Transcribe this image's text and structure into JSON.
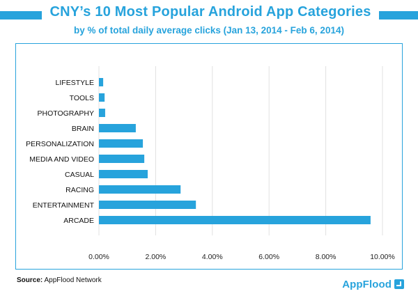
{
  "header": {
    "title": "CNY’s 10 Most Popular Android App Categories",
    "subtitle": "by % of total daily average clicks (Jan 13, 2014 - Feb 6, 2014)"
  },
  "footer": {
    "source_label": "Source:",
    "source_text": " AppFlood Network",
    "brand": "AppFlood"
  },
  "colors": {
    "accent": "#27a3dc",
    "bar": "#27a3dc",
    "grid": "#e0e0e0"
  },
  "chart_data": {
    "type": "bar",
    "orientation": "horizontal",
    "title": "CNY’s 10 Most Popular Android App Categories",
    "subtitle": "by % of total daily average clicks (Jan 13, 2014 - Feb 6, 2014)",
    "categories": [
      "LIFESTYLE",
      "TOOLS",
      "PHOTOGRAPHY",
      "BRAIN",
      "PERSONALIZATION",
      "MEDIA AND VIDEO",
      "CASUAL",
      "RACING",
      "ENTERTAINMENT",
      "ARCADE"
    ],
    "values": [
      0.15,
      0.2,
      0.22,
      1.3,
      1.55,
      1.6,
      1.72,
      2.88,
      3.42,
      9.58
    ],
    "unit": "%",
    "xlim": [
      0,
      10
    ],
    "xticks": [
      0,
      2,
      4,
      6,
      8,
      10
    ],
    "xtick_labels": [
      "0.00%",
      "2.00%",
      "4.00%",
      "6.00%",
      "8.00%",
      "10.00%"
    ],
    "xlabel": "",
    "ylabel": "",
    "grid": true
  }
}
